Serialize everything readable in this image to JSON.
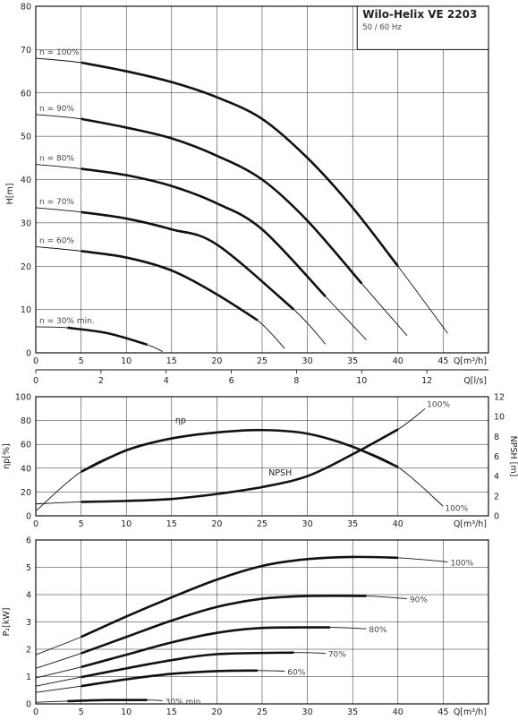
{
  "chart_data": [
    {
      "type": "line",
      "title": "Wilo-Helix VE 2203",
      "subtitle": "50 / 60 Hz",
      "xlabel": "Q[m³/h]",
      "x2label": "Q[l/s]",
      "ylabel": "H[m]",
      "xlim": [
        0,
        50
      ],
      "ylim": [
        0,
        80
      ],
      "x_ticks": [
        0,
        5,
        10,
        15,
        20,
        25,
        30,
        35,
        40,
        45
      ],
      "x2_ticks": [
        0,
        2,
        4,
        6,
        8,
        10,
        12
      ],
      "y_ticks": [
        0,
        10,
        20,
        30,
        40,
        50,
        60,
        70,
        80
      ],
      "grid": true,
      "series": [
        {
          "name": "n = 100%",
          "x": [
            0,
            5,
            10,
            15,
            20,
            25,
            30,
            35,
            40,
            45.5
          ],
          "values": [
            68,
            67,
            65,
            62.5,
            59,
            54,
            45,
            33.5,
            20,
            4.5
          ],
          "bold_from": 5,
          "bold_to": 40
        },
        {
          "name": "n = 90%",
          "x": [
            0,
            5,
            10,
            15,
            20,
            25,
            30,
            36,
            41
          ],
          "values": [
            55,
            54,
            52,
            49.5,
            45.5,
            40,
            30.5,
            16,
            4
          ],
          "bold_from": 5,
          "bold_to": 36
        },
        {
          "name": "n = 80%",
          "x": [
            0,
            5,
            10,
            15,
            20,
            25,
            32,
            36.5
          ],
          "values": [
            43.5,
            42.5,
            41,
            38.5,
            34.5,
            28.5,
            13,
            3
          ],
          "bold_from": 5,
          "bold_to": 32
        },
        {
          "name": "n = 70%",
          "x": [
            0,
            5,
            10,
            15,
            20,
            28.5,
            32
          ],
          "values": [
            33.5,
            32.5,
            31,
            28.5,
            25,
            10,
            2
          ],
          "bold_from": 5,
          "bold_to": 28.5
        },
        {
          "name": "n = 60%",
          "x": [
            0,
            5,
            10,
            15,
            20,
            24.5,
            27.5
          ],
          "values": [
            24.5,
            23.5,
            22,
            19,
            13.5,
            7.5,
            1
          ],
          "bold_from": 5,
          "bold_to": 24.5
        },
        {
          "name": "n = 30% min.",
          "x": [
            0,
            3.5,
            8,
            12.3,
            14
          ],
          "values": [
            6,
            5.8,
            4.5,
            1.9,
            0.3
          ],
          "bold_from": 3.5,
          "bold_to": 12.3
        }
      ]
    },
    {
      "type": "line",
      "xlabel": "Q[m³/h]",
      "ylabel": "ηp[%]",
      "y2label": "NPSH [m]",
      "xlim": [
        0,
        50
      ],
      "ylim": [
        0,
        100
      ],
      "y2lim": [
        0,
        12
      ],
      "x_ticks": [
        0,
        5,
        10,
        15,
        20,
        25,
        30,
        35,
        40
      ],
      "y_ticks": [
        0,
        20,
        40,
        60,
        80,
        100
      ],
      "y2_ticks": [
        0,
        2,
        4,
        6,
        8,
        10,
        12
      ],
      "grid": true,
      "series": [
        {
          "name": "ηp",
          "axis": "left",
          "x": [
            0,
            5,
            10,
            15,
            20,
            25,
            30,
            35,
            40,
            45
          ],
          "values": [
            4,
            37,
            55,
            65,
            70,
            72,
            69,
            58,
            41,
            8
          ],
          "bold_from": 5,
          "bold_to": 40,
          "end_label": "100%"
        },
        {
          "name": "NPSH",
          "axis": "right",
          "x": [
            0,
            5,
            10,
            15,
            20,
            25,
            30,
            35,
            40,
            43
          ],
          "values": [
            1.2,
            1.4,
            1.5,
            1.7,
            2.2,
            2.9,
            4,
            6.2,
            8.7,
            10.8
          ],
          "bold_from": 5,
          "bold_to": 40,
          "end_label": "100%"
        }
      ]
    },
    {
      "type": "line",
      "xlabel": "Q[m³/h]",
      "ylabel": "P₂[kW]",
      "xlim": [
        0,
        50
      ],
      "ylim": [
        0,
        6
      ],
      "x_ticks": [
        0,
        5,
        10,
        15,
        20,
        25,
        30,
        35,
        40,
        45
      ],
      "y_ticks": [
        0,
        1,
        2,
        3,
        4,
        5,
        6
      ],
      "grid": true,
      "series": [
        {
          "name": "100%",
          "x": [
            0,
            5,
            10,
            15,
            20,
            25,
            30,
            35,
            40,
            45.5
          ],
          "values": [
            1.8,
            2.45,
            3.2,
            3.9,
            4.55,
            5.05,
            5.3,
            5.38,
            5.35,
            5.2
          ],
          "bold_from": 5,
          "bold_to": 40
        },
        {
          "name": "90%",
          "x": [
            0,
            5,
            10,
            15,
            20,
            25,
            30,
            36.5,
            41
          ],
          "values": [
            1.3,
            1.85,
            2.45,
            3.05,
            3.55,
            3.85,
            3.95,
            3.95,
            3.85
          ],
          "bold_from": 5,
          "bold_to": 36.5
        },
        {
          "name": "80%",
          "x": [
            0,
            5,
            10,
            15,
            20,
            25,
            32.5,
            36.5
          ],
          "values": [
            0.95,
            1.35,
            1.8,
            2.25,
            2.6,
            2.78,
            2.8,
            2.75
          ],
          "bold_from": 5,
          "bold_to": 32.5
        },
        {
          "name": "70%",
          "x": [
            0,
            5,
            10,
            15,
            20,
            28.5,
            32
          ],
          "values": [
            0.65,
            0.98,
            1.3,
            1.6,
            1.82,
            1.88,
            1.85
          ],
          "bold_from": 5,
          "bold_to": 28.5
        },
        {
          "name": "60%",
          "x": [
            0,
            5,
            10,
            15,
            20,
            24.5,
            27.5
          ],
          "values": [
            0.42,
            0.65,
            0.9,
            1.1,
            1.2,
            1.22,
            1.2
          ],
          "bold_from": 5,
          "bold_to": 24.5
        },
        {
          "name": "30% min.",
          "x": [
            0,
            3.5,
            8,
            12.3,
            14
          ],
          "values": [
            0.06,
            0.1,
            0.14,
            0.14,
            0.12
          ],
          "bold_from": 3.5,
          "bold_to": 12.3
        }
      ]
    }
  ]
}
